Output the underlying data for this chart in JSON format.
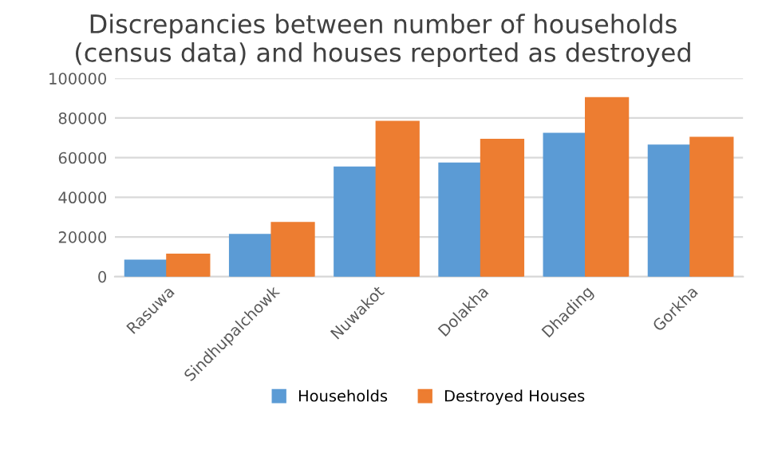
{
  "chart_data": {
    "type": "bar",
    "title": "Discrepancies between number of households\n(census data) and houses reported as destroyed",
    "categories": [
      "Rasuwa",
      "Sindhupalchowk",
      "Nuwakot",
      "Dolakha",
      "Dhading",
      "Gorkha"
    ],
    "series": [
      {
        "name": "Households",
        "color": "#5b9bd5",
        "values": [
          8000,
          21000,
          55000,
          57000,
          72000,
          66000
        ]
      },
      {
        "name": "Destroyed Houses",
        "color": "#ed7d31",
        "values": [
          11000,
          27000,
          78000,
          69000,
          90000,
          70000
        ]
      }
    ],
    "ylim": [
      0,
      100000
    ],
    "yticks": [
      0,
      20000,
      40000,
      60000,
      80000,
      100000
    ],
    "grid": "y",
    "legend": "bottom"
  }
}
